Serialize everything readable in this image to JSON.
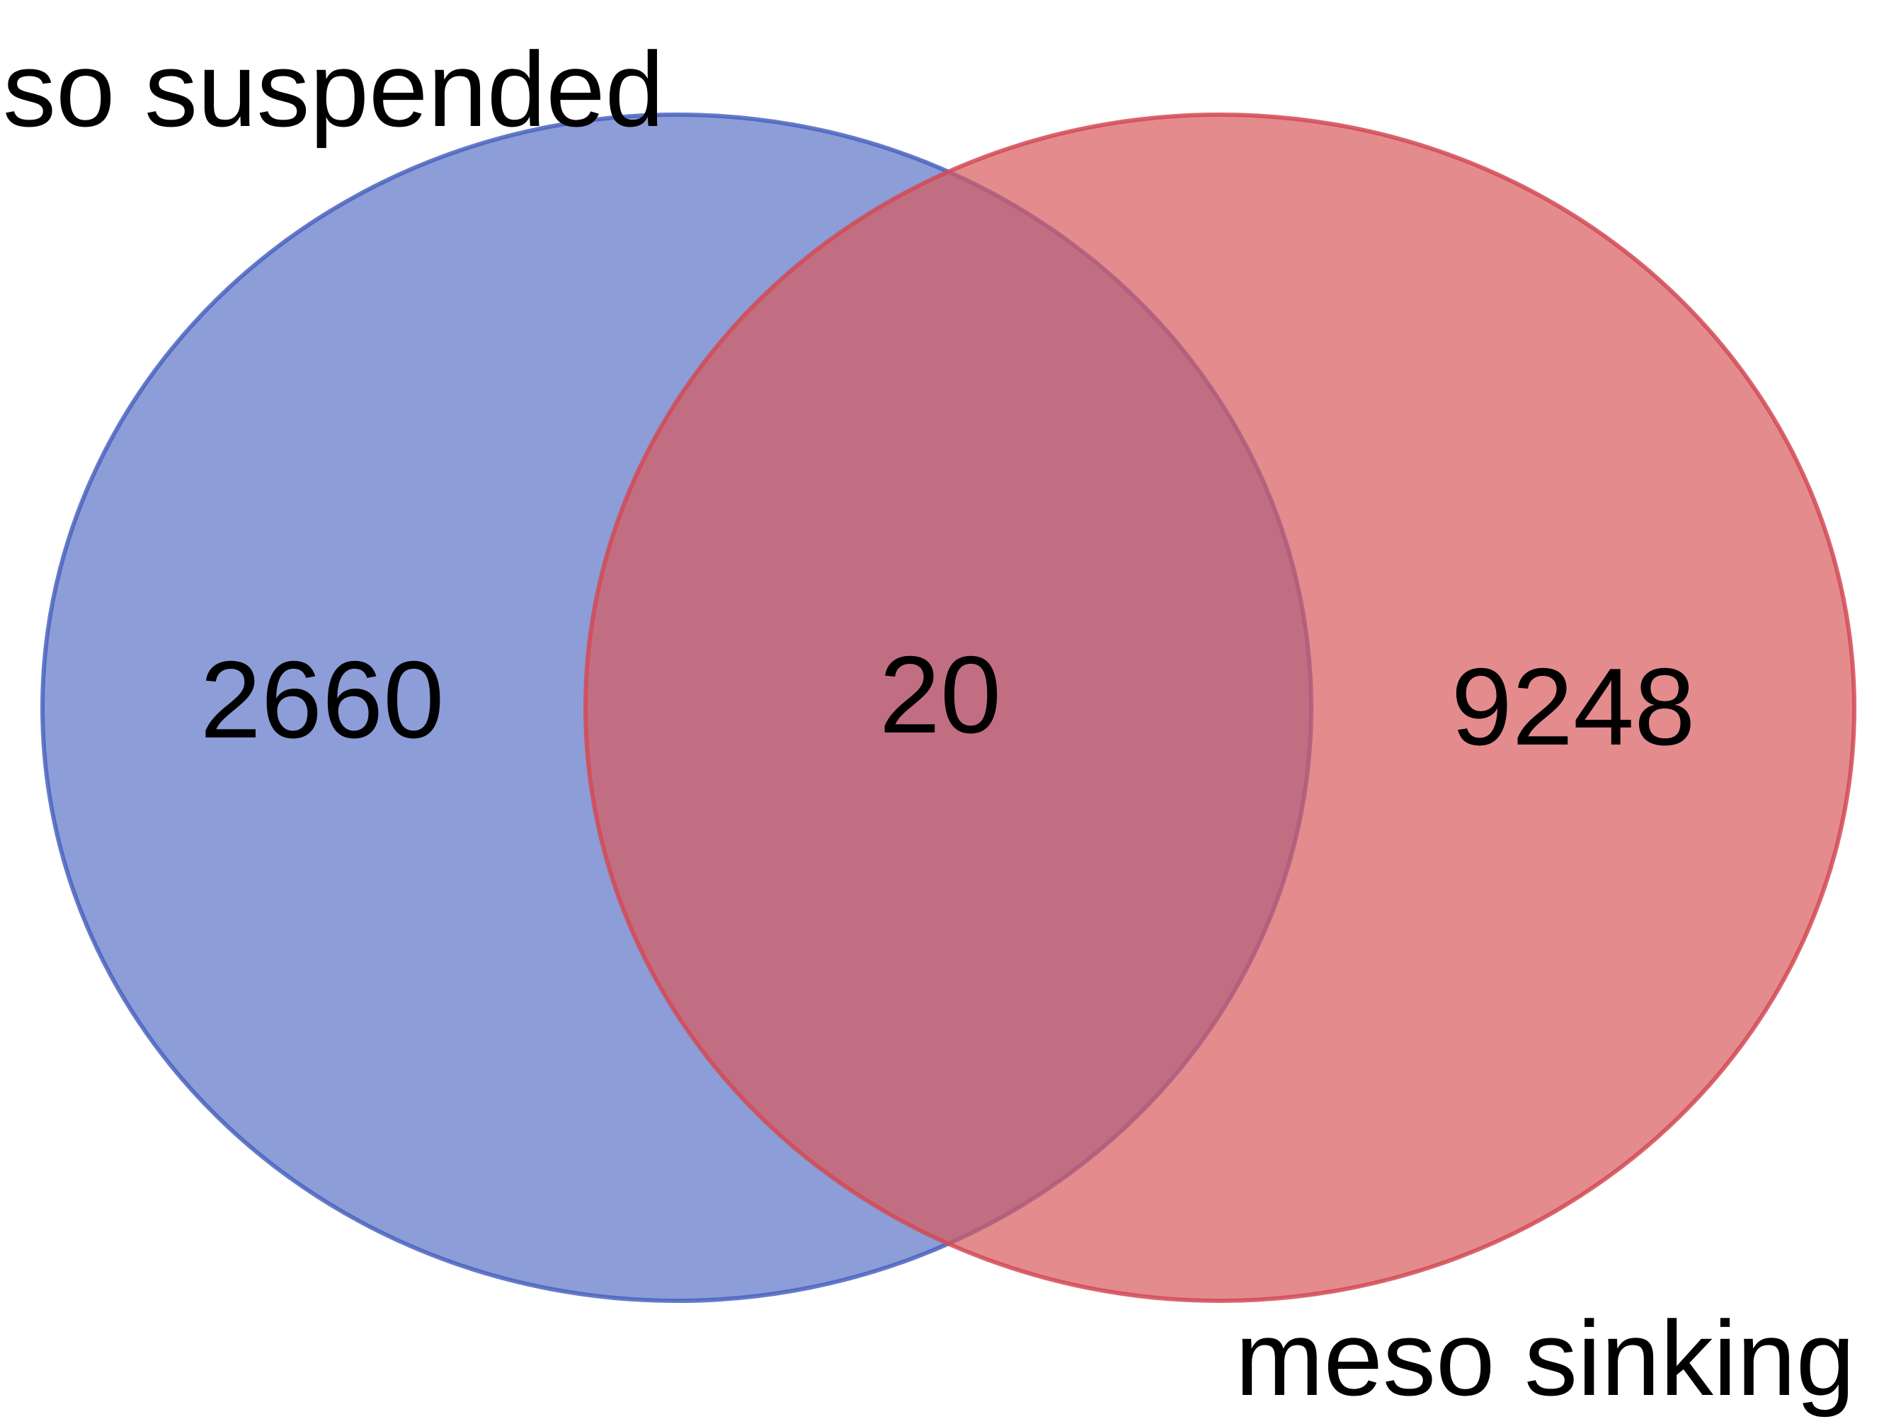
{
  "diagram": {
    "type": "venn",
    "sets": [
      {
        "name": "so suspended",
        "color": "#5B74C8",
        "stroke": "#4A63BE",
        "only_count": "2660"
      },
      {
        "name": "meso sinking",
        "color": "#D95A5E",
        "stroke": "#D24A55",
        "only_count": "9248"
      }
    ],
    "intersection_count": "20"
  }
}
